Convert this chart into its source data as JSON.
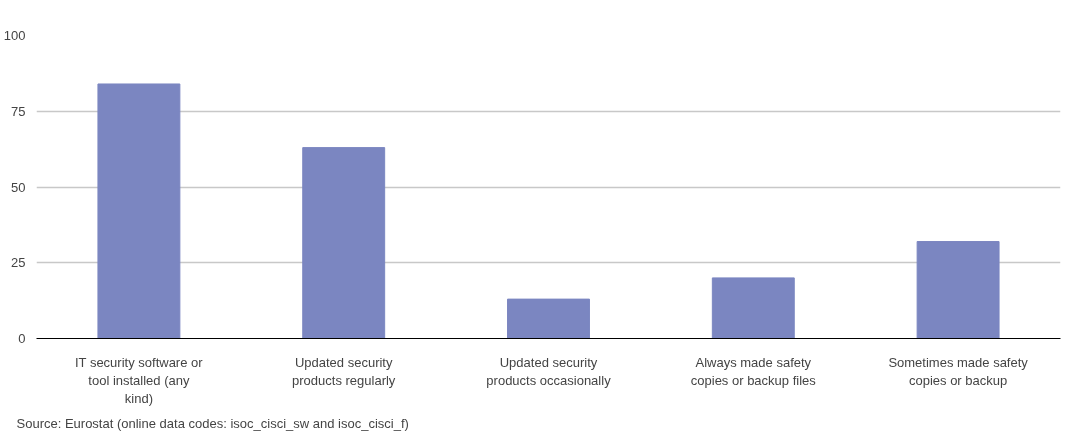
{
  "chart_data": {
    "type": "bar",
    "categories": [
      "IT security software or tool installed (any kind)",
      "Updated security products regularly",
      "Updated security products occasionally",
      "Always made safety copies or backup files",
      "Sometimes made safety copies or backup"
    ],
    "values": [
      84,
      63,
      13,
      20,
      32
    ],
    "color": "#7b86c1",
    "ylim": [
      0,
      100
    ],
    "yticks": [
      0,
      25,
      50,
      75,
      100
    ],
    "grid": "y",
    "annotations": [
      "Source: Eurostat (online data codes: isoc_cisci_sw and isoc_cisci_f)"
    ]
  }
}
